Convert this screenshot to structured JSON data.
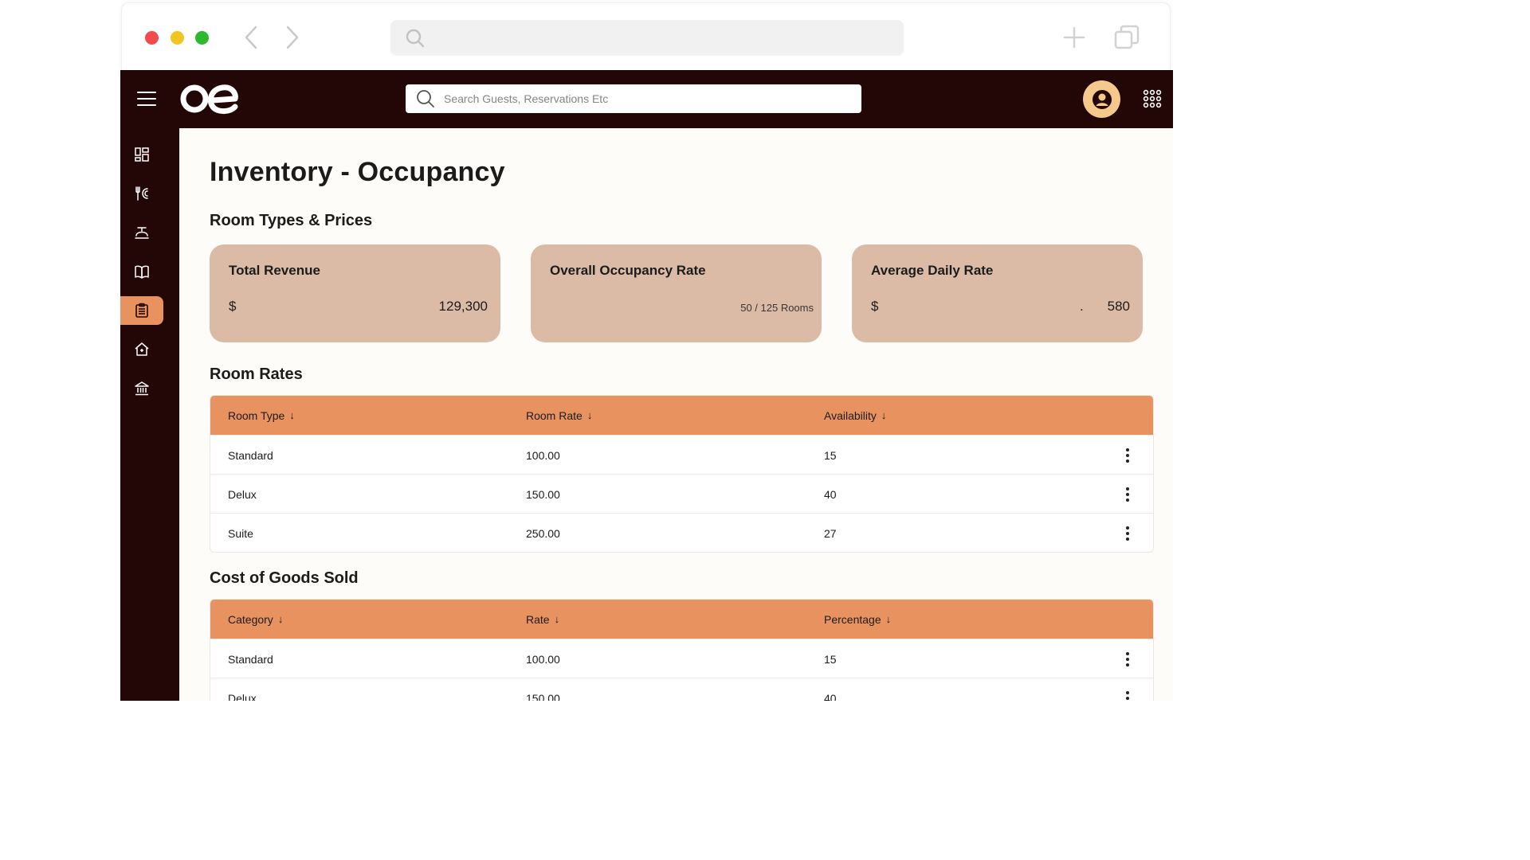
{
  "browser": {
    "icons": [
      "chevron-left-icon",
      "chevron-right-icon",
      "search-icon",
      "plus-icon",
      "tabs-icon"
    ]
  },
  "header": {
    "logo_text": "oe",
    "search_placeholder": "Search Guests, Reservations Etc",
    "icons": [
      "menu-icon",
      "user-icon",
      "apps-grid-icon"
    ]
  },
  "sidebar": {
    "items": [
      {
        "icon": "dashboard-icon",
        "active": false
      },
      {
        "icon": "restaurant-icon",
        "active": false
      },
      {
        "icon": "room-service-icon",
        "active": false
      },
      {
        "icon": "book-icon",
        "active": false
      },
      {
        "icon": "clipboard-icon",
        "active": true
      },
      {
        "icon": "home-icon",
        "active": false
      },
      {
        "icon": "bank-icon",
        "active": false
      }
    ]
  },
  "page": {
    "title": "Inventory - Occupancy",
    "room_types_title": "Room Types & Prices",
    "room_rates_title": "Room Rates",
    "cogs_title": "Cost of Goods Sold"
  },
  "cards": {
    "revenue": {
      "title": "Total Revenue",
      "currency": "$",
      "value": "129,300"
    },
    "occupancy": {
      "title": "Overall Occupancy Rate",
      "sub": "50 / 125 Rooms"
    },
    "adr": {
      "title": "Average Daily Rate",
      "currency": "$",
      "dot": ".",
      "value": "580"
    }
  },
  "room_rates": {
    "columns": [
      "Room Type",
      "Room Rate",
      "Availability"
    ],
    "arrow": "↓",
    "rows": [
      [
        "Standard",
        "100.00",
        "15"
      ],
      [
        "Delux",
        "150.00",
        "40"
      ],
      [
        "Suite",
        "250.00",
        "27"
      ]
    ]
  },
  "cogs": {
    "columns": [
      "Category",
      "Rate",
      "Percentage"
    ],
    "arrow": "↓",
    "rows": [
      [
        "Standard",
        "100.00",
        "15"
      ],
      [
        "Delux",
        "150.00",
        "40"
      ]
    ]
  },
  "colors": {
    "header_bg": "#230606",
    "accent": "#e8925f",
    "card_bg": "#dcbba6",
    "avatar_bg": "#f5c98b"
  }
}
